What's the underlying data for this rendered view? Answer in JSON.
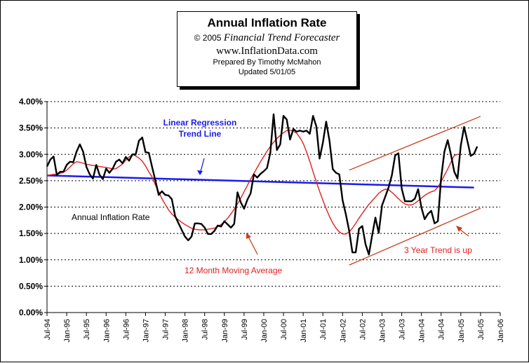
{
  "header": {
    "title": "Annual  Inflation Rate",
    "copyright": "© 2005",
    "publisher": "Financial Trend Forecaster",
    "website": "www.InflationData.com",
    "prepared_by": "Prepared By Timothy McMahon",
    "updated": "Updated 5/01/05"
  },
  "annotations": {
    "regression_label_line1": "Linear Regression",
    "regression_label_line2": "Trend Line",
    "annual_label": "Annual Inflation Rate",
    "moving_average_label": "12 Month Moving Average",
    "trend_label": "3 Year Trend is up"
  },
  "colors": {
    "annual": "#000000",
    "moving_average": "#e02020",
    "regression": "#1a1aee",
    "trend_channel": "#c8401c"
  },
  "chart_data": {
    "type": "line",
    "x_start": "Jul-94",
    "x_ticks": [
      "Jul-94",
      "Jan-95",
      "Jul-95",
      "Jan-96",
      "Jul-96",
      "Jan-97",
      "Jul-97",
      "Jan-98",
      "Jul-98",
      "Jan-99",
      "Jul-99",
      "Jan-00",
      "Jul-00",
      "Jan-01",
      "Jul-01",
      "Jan-02",
      "Jul-02",
      "Jan-03",
      "Jul-03",
      "Jan-04",
      "Jul-04",
      "Jan-05",
      "Jul-05",
      "Jan-06"
    ],
    "y_ticks": [
      "0.00%",
      "0.50%",
      "1.00%",
      "1.50%",
      "2.00%",
      "2.50%",
      "3.00%",
      "3.50%",
      "4.00%"
    ],
    "ylim": [
      0,
      4.0
    ],
    "grid": "horizontal dotted",
    "series": [
      {
        "name": "Annual Inflation Rate",
        "values": [
          2.77,
          2.9,
          2.96,
          2.61,
          2.67,
          2.67,
          2.8,
          2.86,
          2.85,
          3.05,
          3.19,
          3.05,
          2.76,
          2.62,
          2.54,
          2.8,
          2.61,
          2.53,
          2.73,
          2.65,
          2.73,
          2.86,
          2.9,
          2.83,
          2.95,
          2.88,
          3.0,
          3.0,
          3.26,
          3.32,
          3.04,
          3.03,
          2.76,
          2.5,
          2.23,
          2.3,
          2.23,
          2.22,
          2.15,
          1.83,
          1.7,
          1.57,
          1.44,
          1.37,
          1.44,
          1.69,
          1.69,
          1.68,
          1.61,
          1.49,
          1.49,
          1.55,
          1.65,
          1.63,
          1.73,
          1.67,
          1.61,
          1.68,
          2.28,
          2.09,
          1.97,
          2.14,
          2.26,
          2.62,
          2.56,
          2.63,
          2.68,
          2.74,
          3.03,
          3.76,
          3.08,
          3.19,
          3.73,
          3.66,
          3.28,
          3.48,
          3.43,
          3.45,
          3.43,
          3.45,
          3.39,
          3.73,
          3.53,
          2.92,
          3.22,
          3.62,
          3.26,
          2.72,
          2.65,
          2.62,
          2.13,
          1.86,
          1.55,
          1.14,
          1.14,
          1.59,
          1.64,
          1.29,
          1.1,
          1.46,
          1.8,
          1.51,
          2.03,
          2.2,
          2.37,
          2.6,
          2.98,
          3.02,
          2.35,
          2.11,
          2.11,
          2.11,
          2.16,
          2.34,
          1.99,
          1.77,
          1.87,
          1.93,
          1.69,
          1.73,
          2.54,
          3.05,
          3.27,
          2.99,
          2.67,
          2.54,
          3.17,
          3.52,
          3.25,
          2.97,
          3.01,
          3.15
        ]
      },
      {
        "name": "12 Month Moving Average",
        "values": [
          2.6,
          2.61,
          2.62,
          2.62,
          2.64,
          2.66,
          2.7,
          2.76,
          2.82,
          2.86,
          2.85,
          2.83,
          2.81,
          2.8,
          2.79,
          2.78,
          2.77,
          2.76,
          2.75,
          2.74,
          2.72,
          2.73,
          2.77,
          2.82,
          2.89,
          2.95,
          3.0,
          2.97,
          2.93,
          2.87,
          2.78,
          2.67,
          2.57,
          2.42,
          2.29,
          2.16,
          2.05,
          1.95,
          1.87,
          1.81,
          1.76,
          1.71,
          1.67,
          1.63,
          1.6,
          1.58,
          1.57,
          1.57,
          1.57,
          1.58,
          1.59,
          1.6,
          1.63,
          1.67,
          1.72,
          1.79,
          1.87,
          1.96,
          2.06,
          2.17,
          2.29,
          2.41,
          2.53,
          2.64,
          2.75,
          2.86,
          2.96,
          3.06,
          3.15,
          3.23,
          3.3,
          3.36,
          3.41,
          3.45,
          3.46,
          3.44,
          3.4,
          3.32,
          3.21,
          3.05,
          2.87,
          2.67,
          2.48,
          2.3,
          2.13,
          1.97,
          1.82,
          1.7,
          1.6,
          1.53,
          1.49,
          1.49,
          1.53,
          1.6,
          1.69,
          1.79,
          1.88,
          1.97,
          2.05,
          2.12,
          2.19,
          2.26,
          2.31,
          2.34,
          2.33,
          2.28,
          2.22,
          2.16,
          2.1,
          2.06,
          2.04,
          2.04,
          2.07,
          2.12,
          2.17,
          2.22,
          2.26,
          2.29,
          2.31,
          2.38,
          2.48,
          2.6,
          2.72,
          2.85,
          2.98,
          3.0
        ]
      },
      {
        "name": "Linear Regression Trend Line",
        "x": [
          "Jul-94",
          "May-05"
        ],
        "values": [
          2.6,
          2.37
        ]
      }
    ],
    "trend_channel": {
      "upper": {
        "x": [
          "Mar-02",
          "Jul-05"
        ],
        "values": [
          2.7,
          3.72
        ]
      },
      "lower": {
        "x": [
          "Mar-02",
          "Jul-05"
        ],
        "values": [
          0.9,
          1.98
        ]
      }
    }
  }
}
